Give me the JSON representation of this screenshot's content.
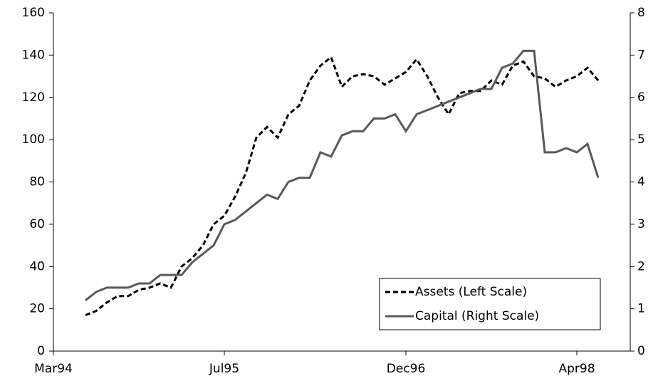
{
  "chart_data": {
    "type": "line",
    "x": [
      "1994-06",
      "1994-07",
      "1994-08",
      "1994-09",
      "1994-10",
      "1994-11",
      "1994-12",
      "1995-01",
      "1995-02",
      "1995-03",
      "1995-04",
      "1995-05",
      "1995-06",
      "1995-07",
      "1995-08",
      "1995-09",
      "1995-10",
      "1995-11",
      "1995-12",
      "1996-01",
      "1996-02",
      "1996-03",
      "1996-04",
      "1996-05",
      "1996-06",
      "1996-07",
      "1996-08",
      "1996-09",
      "1996-10",
      "1996-11",
      "1996-12",
      "1997-01",
      "1997-02",
      "1997-03",
      "1997-04",
      "1997-05",
      "1997-06",
      "1997-07",
      "1997-08",
      "1997-09",
      "1997-10",
      "1997-11",
      "1997-12",
      "1998-01",
      "1998-02",
      "1998-03",
      "1998-04",
      "1998-05",
      "1998-06"
    ],
    "series": [
      {
        "name": "Assets (Left Scale)",
        "color": "#000000",
        "dash": true,
        "values": [
          17,
          19,
          23,
          26,
          26,
          29,
          30,
          32,
          30,
          40,
          44,
          50,
          60,
          64,
          73,
          84,
          101,
          106,
          101,
          112,
          116,
          128,
          135,
          139,
          125,
          130,
          131,
          130,
          126,
          129,
          132,
          138,
          130,
          120,
          112,
          122,
          123,
          123,
          128,
          126,
          135,
          137,
          130,
          129,
          125,
          128,
          130,
          134,
          128
        ]
      },
      {
        "name": "Capital (Right Scale)",
        "color": "#595959",
        "dash": false,
        "axis": "y2",
        "values": [
          1.2,
          1.4,
          1.5,
          1.5,
          1.5,
          1.6,
          1.6,
          1.8,
          1.8,
          1.8,
          2.1,
          2.3,
          2.5,
          3.0,
          3.1,
          3.3,
          3.5,
          3.7,
          3.6,
          4.0,
          4.1,
          4.1,
          4.7,
          4.6,
          5.1,
          5.2,
          5.2,
          5.5,
          5.5,
          5.6,
          5.2,
          5.6,
          5.7,
          5.8,
          5.9,
          6.0,
          6.1,
          6.2,
          6.2,
          6.7,
          6.8,
          7.1,
          7.1,
          4.7,
          4.7,
          4.8,
          4.7,
          4.9,
          4.1
        ]
      }
    ],
    "xlim": [
      "1994-03",
      "1998-09"
    ],
    "xticks": [
      {
        "value": "1994-03",
        "label": "Mar94"
      },
      {
        "value": "1995-07",
        "label": "Jul95"
      },
      {
        "value": "1996-12",
        "label": "Dec96"
      },
      {
        "value": "1998-04",
        "label": "Apr98"
      }
    ],
    "ylim": [
      0,
      160
    ],
    "yticks": [
      0,
      20,
      40,
      60,
      80,
      100,
      120,
      140,
      160
    ],
    "y2lim": [
      0,
      8
    ],
    "y2ticks": [
      0,
      1,
      2,
      3,
      4,
      5,
      6,
      7,
      8
    ],
    "legend": "lower right"
  }
}
